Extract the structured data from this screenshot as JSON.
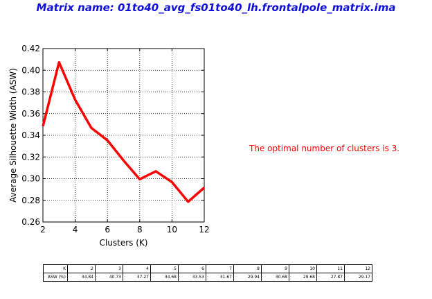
{
  "title": "Matrix name: 01to40_avg_fs01to40_lh.frontalpole_matrix.ima",
  "annotation": "The optimal number of clusters is 3.",
  "chart_data": {
    "type": "line",
    "xlabel": "Clusters (K)",
    "ylabel": "Average Silhouette Width (ASW)",
    "xlim": [
      2,
      12
    ],
    "ylim": [
      0.26,
      0.42
    ],
    "xticks": [
      2,
      4,
      6,
      8,
      10,
      12
    ],
    "yticks": [
      0.26,
      0.28,
      0.3,
      0.32,
      0.34,
      0.36,
      0.38,
      0.4,
      0.42
    ],
    "ytick_labels": [
      "0.26",
      "0.28",
      "0.30",
      "0.32",
      "0.34",
      "0.36",
      "0.38",
      "0.40",
      "0.42"
    ],
    "grid": true,
    "line_color": "#ff0000",
    "x": [
      2,
      3,
      4,
      5,
      6,
      7,
      8,
      9,
      10,
      11,
      12
    ],
    "y": [
      0.3484,
      0.4073,
      0.3727,
      0.3468,
      0.3353,
      0.3167,
      0.2994,
      0.3068,
      0.2968,
      0.2787,
      0.2917
    ]
  },
  "table": {
    "row1_header": "K",
    "row2_header": "ASW (%)",
    "k": [
      "2",
      "3",
      "4",
      "5",
      "6",
      "7",
      "8",
      "9",
      "10",
      "11",
      "12"
    ],
    "asw": [
      "34.84",
      "40.73",
      "37.27",
      "34.68",
      "33.53",
      "31.67",
      "29.94",
      "30.68",
      "29.68",
      "27.87",
      "29.17"
    ]
  }
}
